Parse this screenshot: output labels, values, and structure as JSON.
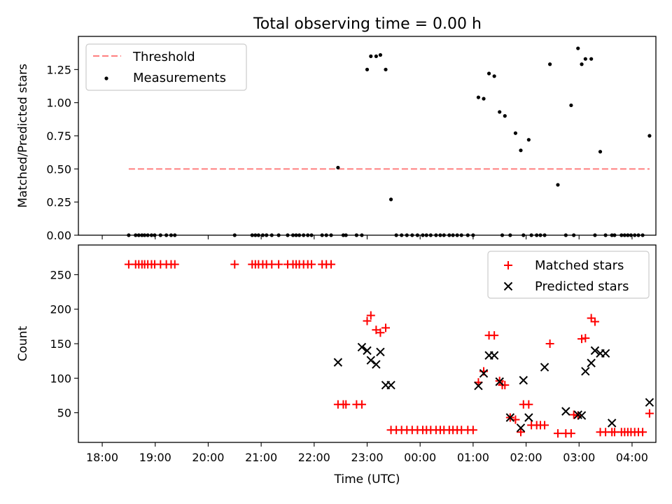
{
  "figure": {
    "title": "Total observing time = 0.00 h"
  },
  "chart_data": [
    {
      "type": "scatter",
      "title": "Total observing time = 0.00 h",
      "xlabel": "",
      "ylabel": "Matched/Predicted stars",
      "xlim": [
        -0.45,
        10.45
      ],
      "ylim": [
        0.0,
        1.5
      ],
      "yticks": [
        0.0,
        0.25,
        0.5,
        0.75,
        1.0,
        1.25
      ],
      "ytick_labels": [
        "0.00",
        "0.25",
        "0.50",
        "0.75",
        "1.00",
        "1.25"
      ],
      "legend": {
        "position": "upper-left",
        "entries": [
          "Threshold",
          "Measurements"
        ]
      },
      "threshold": {
        "name": "Threshold",
        "value": 0.5,
        "x_range": [
          0.5,
          10.33
        ],
        "color": "#ff7f7f",
        "style": "dashed"
      },
      "series": [
        {
          "name": "Measurements",
          "color": "#000000",
          "marker": "dot",
          "x": [
            0.5,
            0.63,
            0.69,
            0.75,
            0.8,
            0.86,
            0.93,
            0.99,
            1.1,
            1.21,
            1.3,
            1.37,
            2.5,
            2.83,
            2.89,
            2.95,
            3.03,
            3.1,
            3.2,
            3.33,
            3.5,
            3.6,
            3.66,
            3.72,
            3.8,
            3.88,
            3.95,
            4.15,
            4.23,
            4.32,
            4.45,
            4.55,
            4.6,
            4.8,
            4.9,
            5.0,
            5.07,
            5.17,
            5.25,
            5.35,
            5.45,
            5.55,
            5.65,
            5.75,
            5.85,
            5.95,
            6.05,
            6.12,
            6.2,
            6.3,
            6.38,
            6.45,
            6.55,
            6.62,
            6.7,
            6.78,
            6.9,
            7.0,
            7.1,
            7.2,
            7.3,
            7.4,
            7.5,
            7.55,
            7.6,
            7.7,
            7.8,
            7.9,
            7.95,
            8.05,
            8.1,
            8.2,
            8.27,
            8.35,
            8.45,
            8.6,
            8.75,
            8.85,
            8.9,
            8.98,
            9.05,
            9.12,
            9.23,
            9.3,
            9.4,
            9.5,
            9.62,
            9.67,
            9.8,
            9.86,
            9.92,
            9.98,
            10.05,
            10.12,
            10.2,
            10.33
          ],
          "y": [
            0.0,
            0.0,
            0.0,
            0.0,
            0.0,
            0.0,
            0.0,
            0.0,
            0.0,
            0.0,
            0.0,
            0.0,
            0.0,
            0.0,
            0.0,
            0.0,
            0.0,
            0.0,
            0.0,
            0.0,
            0.0,
            0.0,
            0.0,
            0.0,
            0.0,
            0.0,
            0.0,
            0.0,
            0.0,
            0.0,
            0.51,
            0.0,
            0.0,
            0.0,
            0.0,
            1.25,
            1.35,
            1.35,
            1.36,
            1.25,
            0.27,
            0.0,
            0.0,
            0.0,
            0.0,
            0.0,
            0.0,
            0.0,
            0.0,
            0.0,
            0.0,
            0.0,
            0.0,
            0.0,
            0.0,
            0.0,
            0.0,
            0.0,
            1.04,
            1.03,
            1.22,
            1.2,
            0.93,
            0.0,
            0.9,
            0.0,
            0.77,
            0.64,
            0.0,
            0.72,
            0.0,
            0.0,
            0.0,
            0.0,
            1.29,
            0.38,
            0.0,
            0.98,
            0.0,
            1.41,
            1.29,
            1.33,
            1.33,
            0.0,
            0.63,
            0.0,
            0.0,
            0.0,
            0.0,
            0.0,
            0.0,
            0.0,
            0.0,
            0.0,
            0.0,
            0.75
          ]
        }
      ]
    },
    {
      "type": "scatter",
      "title": "",
      "xlabel": "Time (UTC)",
      "ylabel": "Count",
      "xlim": [
        -0.45,
        10.45
      ],
      "ylim": [
        7.0,
        293.0
      ],
      "yticks": [
        50,
        100,
        150,
        200,
        250
      ],
      "ytick_labels": [
        "50",
        "100",
        "150",
        "200",
        "250"
      ],
      "xticks": [
        0,
        1,
        2,
        3,
        4,
        5,
        6,
        7,
        8,
        9,
        10
      ],
      "xtick_labels": [
        "18:00",
        "19:00",
        "20:00",
        "21:00",
        "22:00",
        "23:00",
        "00:00",
        "01:00",
        "02:00",
        "03:00",
        "04:00"
      ],
      "legend": {
        "position": "upper-right",
        "entries": [
          "Matched stars",
          "Predicted stars"
        ]
      },
      "series": [
        {
          "name": "Matched stars",
          "color": "#ff0000",
          "marker": "plus",
          "x": [
            0.5,
            0.63,
            0.69,
            0.75,
            0.8,
            0.86,
            0.93,
            0.99,
            1.1,
            1.21,
            1.3,
            1.37,
            2.5,
            2.83,
            2.89,
            2.95,
            3.03,
            3.1,
            3.2,
            3.33,
            3.5,
            3.6,
            3.66,
            3.72,
            3.8,
            3.88,
            3.95,
            4.15,
            4.23,
            4.32,
            4.45,
            4.55,
            4.6,
            4.8,
            4.9,
            5.0,
            5.07,
            5.17,
            5.25,
            5.35,
            5.45,
            5.55,
            5.65,
            5.75,
            5.85,
            5.95,
            6.05,
            6.12,
            6.2,
            6.3,
            6.38,
            6.45,
            6.55,
            6.62,
            6.7,
            6.78,
            6.9,
            7.0,
            7.1,
            7.2,
            7.3,
            7.4,
            7.5,
            7.55,
            7.6,
            7.7,
            7.8,
            7.9,
            7.95,
            8.05,
            8.1,
            8.2,
            8.27,
            8.35,
            8.45,
            8.6,
            8.75,
            8.85,
            8.9,
            8.98,
            9.05,
            9.12,
            9.23,
            9.3,
            9.4,
            9.5,
            9.62,
            9.67,
            9.8,
            9.86,
            9.92,
            9.98,
            10.05,
            10.12,
            10.2,
            10.33
          ],
          "y": [
            265,
            265,
            265,
            265,
            265,
            265,
            265,
            265,
            265,
            265,
            265,
            265,
            265,
            265,
            265,
            265,
            265,
            265,
            265,
            265,
            265,
            265,
            265,
            265,
            265,
            265,
            265,
            265,
            265,
            265,
            62,
            62,
            62,
            62,
            62,
            183,
            191,
            170,
            166,
            173,
            25,
            25,
            25,
            25,
            25,
            25,
            25,
            25,
            25,
            25,
            25,
            25,
            25,
            25,
            25,
            25,
            25,
            25,
            94,
            110,
            162,
            162,
            96,
            90,
            90,
            43,
            40,
            22,
            62,
            62,
            32,
            32,
            32,
            32,
            150,
            20,
            20,
            20,
            47,
            46,
            157,
            158,
            187,
            182,
            22,
            22,
            22,
            22,
            22,
            22,
            22,
            22,
            22,
            22,
            22,
            49
          ]
        },
        {
          "name": "Predicted stars",
          "color": "#000000",
          "marker": "x",
          "x": [
            4.45,
            4.9,
            5.0,
            5.07,
            5.17,
            5.25,
            5.35,
            5.45,
            7.1,
            7.2,
            7.3,
            7.4,
            7.5,
            7.7,
            7.9,
            7.95,
            8.05,
            8.35,
            8.75,
            8.98,
            9.05,
            9.12,
            9.23,
            9.3,
            9.4,
            9.5,
            9.62,
            10.33
          ],
          "y": [
            123,
            145,
            140,
            126,
            120,
            138,
            90,
            90,
            89,
            107,
            133,
            133,
            95,
            43,
            28,
            97,
            43,
            116,
            52,
            47,
            46,
            110,
            122,
            140,
            136,
            136,
            35,
            65
          ]
        }
      ]
    }
  ]
}
